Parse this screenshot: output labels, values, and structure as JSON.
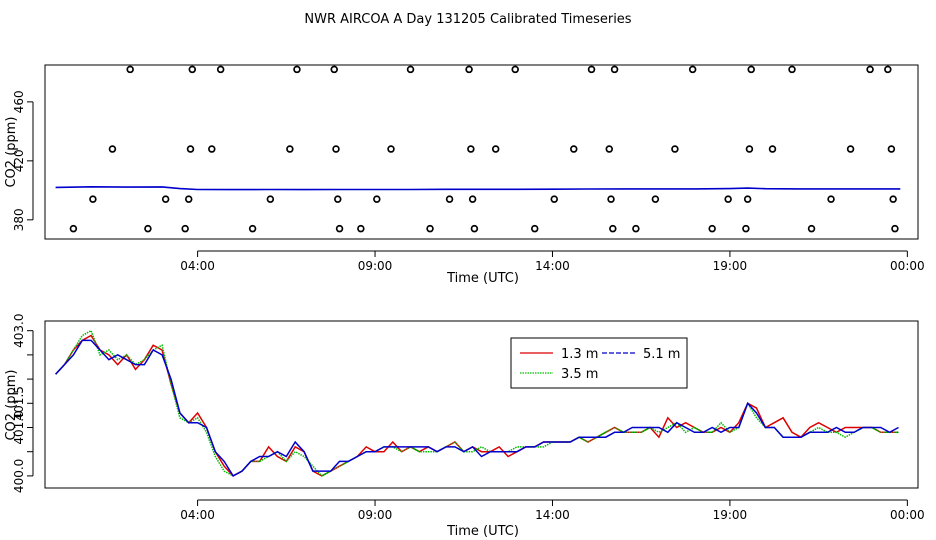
{
  "title": "NWR AIRCOA A  Day 131205  Calibrated Timeseries",
  "chart_data": [
    {
      "type": "scatter",
      "xlabel": "Time (UTC)",
      "ylabel": "CO2 (ppm)",
      "x_unit": "hours since 00:00 UTC",
      "xlim": [
        -0.3,
        24.3
      ],
      "ylim": [
        367,
        485
      ],
      "x_tick_values": [
        4,
        9,
        14,
        19,
        24
      ],
      "x_tick_labels": [
        "04:00",
        "09:00",
        "14:00",
        "19:00",
        "00:00"
      ],
      "y_ticks": [
        380,
        420,
        460
      ],
      "grid": false,
      "markers": "open circles",
      "series": [
        {
          "name": "",
          "style": "open circles",
          "color": "#000000",
          "x": [
            0.5,
            1.05,
            1.6,
            2.1,
            2.6,
            3.1,
            3.65,
            3.75,
            3.8,
            3.85,
            4.4,
            4.65,
            5.55,
            6.05,
            6.6,
            6.8,
            7.85,
            7.9,
            7.95,
            8.0,
            8.6,
            9.05,
            9.45,
            10.0,
            10.55,
            11.1,
            11.65,
            11.7,
            11.75,
            11.8,
            12.4,
            12.95,
            13.5,
            14.05,
            14.6,
            15.1,
            15.6,
            15.65,
            15.7,
            15.75,
            16.35,
            16.9,
            17.45,
            17.95,
            18.5,
            18.95,
            19.45,
            19.5,
            19.55,
            19.6,
            20.2,
            20.75,
            21.3,
            21.85,
            22.4,
            22.95,
            23.45,
            23.55,
            23.6,
            23.65
          ],
          "y": [
            374,
            394,
            428,
            482,
            374,
            394,
            374,
            394,
            428,
            482,
            428,
            482,
            374,
            394,
            428,
            482,
            482,
            428,
            394,
            374,
            374,
            394,
            428,
            482,
            374,
            394,
            482,
            428,
            394,
            374,
            428,
            482,
            374,
            394,
            428,
            482,
            428,
            394,
            374,
            482,
            374,
            394,
            428,
            482,
            374,
            394,
            374,
            394,
            428,
            482,
            428,
            482,
            374,
            394,
            428,
            482,
            482,
            428,
            394,
            374
          ]
        },
        {
          "name": "",
          "style": "line",
          "color": "#0000cc",
          "x": [
            0,
            1,
            2,
            3,
            3.5,
            4,
            5,
            6,
            7,
            8,
            9,
            10,
            11,
            12,
            13,
            14,
            15,
            16,
            17,
            18,
            19,
            19.5,
            20,
            21,
            22,
            23,
            23.8
          ],
          "y": [
            402,
            402.4,
            402.2,
            402.3,
            401.2,
            400.6,
            400.5,
            400.6,
            400.5,
            400.6,
            400.6,
            400.6,
            400.7,
            400.7,
            400.7,
            400.8,
            400.9,
            401.0,
            401.0,
            401.0,
            401.2,
            401.5,
            401.1,
            401.0,
            401.0,
            401.0,
            401.0
          ]
        }
      ]
    },
    {
      "type": "line",
      "xlabel": "Time (UTC)",
      "ylabel": "CO2 (ppm)",
      "x_unit": "hours since 00:00 UTC",
      "xlim": [
        -0.3,
        24.3
      ],
      "ylim": [
        399.75,
        403.2
      ],
      "x_tick_values": [
        4,
        9,
        14,
        19,
        24
      ],
      "x_tick_labels": [
        "04:00",
        "09:00",
        "14:00",
        "19:00",
        "00:00"
      ],
      "y_ticks": [
        400.0,
        400.5,
        401.0,
        401.5,
        402.0,
        402.5,
        403.0
      ],
      "y_tick_labels": [
        "400.0",
        "",
        "401.0",
        "401.5",
        "",
        "",
        "403.0"
      ],
      "grid": false,
      "legend_position": "upper-center",
      "legend_layout": "two columns",
      "x": [
        0.0,
        0.25,
        0.5,
        0.75,
        1.0,
        1.25,
        1.5,
        1.75,
        2.0,
        2.25,
        2.5,
        2.75,
        3.0,
        3.25,
        3.5,
        3.75,
        4.0,
        4.25,
        4.5,
        4.75,
        5.0,
        5.25,
        5.5,
        5.75,
        6.0,
        6.25,
        6.5,
        6.75,
        7.0,
        7.25,
        7.5,
        7.75,
        8.0,
        8.25,
        8.5,
        8.75,
        9.0,
        9.25,
        9.5,
        9.75,
        10.0,
        10.25,
        10.5,
        10.75,
        11.0,
        11.25,
        11.5,
        11.75,
        12.0,
        12.25,
        12.5,
        12.75,
        13.0,
        13.25,
        13.5,
        13.75,
        14.0,
        14.25,
        14.5,
        14.75,
        15.0,
        15.25,
        15.5,
        15.75,
        16.0,
        16.25,
        16.5,
        16.75,
        17.0,
        17.25,
        17.5,
        17.75,
        18.0,
        18.25,
        18.5,
        18.75,
        19.0,
        19.25,
        19.5,
        19.75,
        20.0,
        20.25,
        20.5,
        20.75,
        21.0,
        21.25,
        21.5,
        21.75,
        22.0,
        22.25,
        22.5,
        22.75,
        23.0,
        23.25,
        23.5,
        23.75
      ],
      "series": [
        {
          "name": "1.3 m",
          "color": "#dd0000",
          "values": [
            402.1,
            402.3,
            402.6,
            402.8,
            402.9,
            402.6,
            402.5,
            402.3,
            402.5,
            402.2,
            402.4,
            402.7,
            402.6,
            401.9,
            401.3,
            401.1,
            401.3,
            401.0,
            400.5,
            400.2,
            400.0,
            400.1,
            400.3,
            400.3,
            400.6,
            400.4,
            400.3,
            400.6,
            400.5,
            400.1,
            400.0,
            400.1,
            400.2,
            400.3,
            400.4,
            400.6,
            400.5,
            400.5,
            400.7,
            400.5,
            400.6,
            400.5,
            400.6,
            400.5,
            400.6,
            400.7,
            400.5,
            400.6,
            400.5,
            400.5,
            400.6,
            400.4,
            400.5,
            400.6,
            400.6,
            400.7,
            400.7,
            400.7,
            400.7,
            400.8,
            400.7,
            400.8,
            400.9,
            401.0,
            400.9,
            400.9,
            400.9,
            401.0,
            400.8,
            401.2,
            401.0,
            401.1,
            401.0,
            400.9,
            400.9,
            401.0,
            400.9,
            401.1,
            401.5,
            401.4,
            401.0,
            401.1,
            401.2,
            400.9,
            400.8,
            401.0,
            401.1,
            401.0,
            400.9,
            401.0,
            401.0,
            401.0,
            401.0,
            400.9,
            400.9,
            400.9
          ]
        },
        {
          "name": "3.5 m",
          "color": "#00bb00",
          "values": [
            402.1,
            402.3,
            402.6,
            402.9,
            403.0,
            402.5,
            402.6,
            402.4,
            402.5,
            402.3,
            402.4,
            402.6,
            402.7,
            401.9,
            401.2,
            401.1,
            401.2,
            400.9,
            400.4,
            400.1,
            400.0,
            400.1,
            400.3,
            400.3,
            400.4,
            400.5,
            400.3,
            400.5,
            400.4,
            400.2,
            400.0,
            400.1,
            400.2,
            400.3,
            400.4,
            400.5,
            400.5,
            400.6,
            400.6,
            400.5,
            400.6,
            400.5,
            400.5,
            400.5,
            400.6,
            400.7,
            400.5,
            400.5,
            400.6,
            400.5,
            400.5,
            400.5,
            400.6,
            400.6,
            400.6,
            400.6,
            400.7,
            400.7,
            400.7,
            400.8,
            400.7,
            400.8,
            400.9,
            401.0,
            400.9,
            400.9,
            400.9,
            401.0,
            400.9,
            401.0,
            401.1,
            400.9,
            401.0,
            400.9,
            400.9,
            401.1,
            400.9,
            401.0,
            401.5,
            401.2,
            401.0,
            401.0,
            400.8,
            400.8,
            400.8,
            400.9,
            401.0,
            400.9,
            400.9,
            400.8,
            400.9,
            401.0,
            401.0,
            400.9,
            400.9,
            400.9
          ]
        },
        {
          "name": "5.1 m",
          "color": "#0000cc",
          "values": [
            402.1,
            402.3,
            402.5,
            402.8,
            402.8,
            402.6,
            402.4,
            402.5,
            402.4,
            402.3,
            402.3,
            402.6,
            402.5,
            402.0,
            401.3,
            401.1,
            401.1,
            401.0,
            400.5,
            400.3,
            400.0,
            400.1,
            400.3,
            400.4,
            400.4,
            400.5,
            400.4,
            400.7,
            400.5,
            400.1,
            400.1,
            400.1,
            400.3,
            400.3,
            400.4,
            400.5,
            400.5,
            400.6,
            400.6,
            400.6,
            400.6,
            400.6,
            400.6,
            400.5,
            400.6,
            400.6,
            400.5,
            400.6,
            400.4,
            400.5,
            400.5,
            400.5,
            400.5,
            400.6,
            400.6,
            400.7,
            400.7,
            400.7,
            400.7,
            400.8,
            400.8,
            400.8,
            400.8,
            400.9,
            400.9,
            401.0,
            401.0,
            401.0,
            401.0,
            400.9,
            401.1,
            401.0,
            400.9,
            400.9,
            401.0,
            400.9,
            401.0,
            401.0,
            401.5,
            401.3,
            401.0,
            401.0,
            400.8,
            400.8,
            400.8,
            400.9,
            400.9,
            400.9,
            401.0,
            400.9,
            400.9,
            401.0,
            401.0,
            401.0,
            400.9,
            401.0
          ]
        }
      ]
    }
  ]
}
